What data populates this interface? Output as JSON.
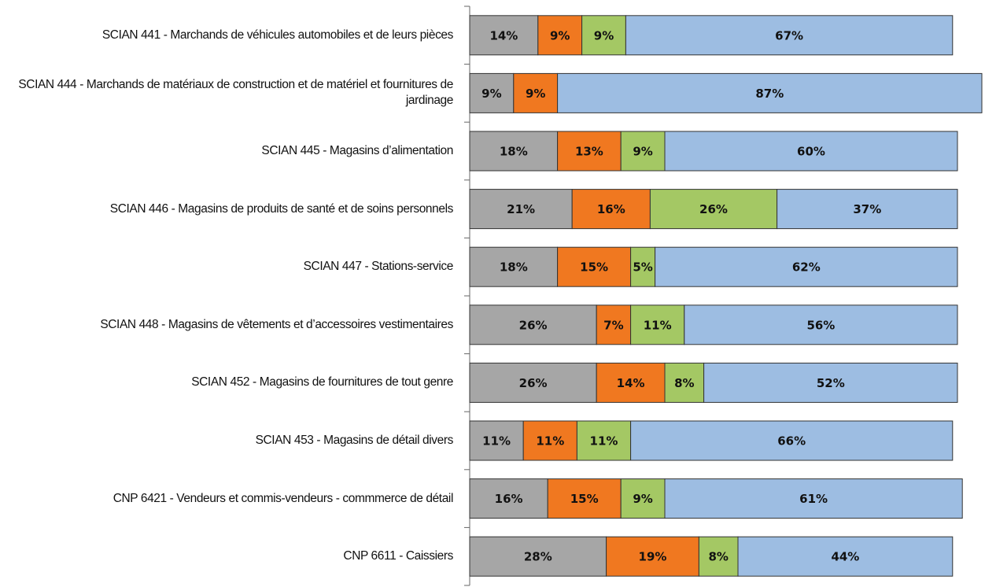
{
  "chart_data": {
    "type": "stacked-bar-horizontal",
    "categories": [
      "SCIAN 441 -  Marchands de véhicules automobiles et de leurs pièces",
      "SCIAN 444 -  Marchands de matériaux de construction et de matériel et fournitures de jardinage",
      "SCIAN 445 -  Magasins d’alimentation",
      "SCIAN 446 -  Magasins de produits de santé et de soins personnels",
      "SCIAN 447 -  Stations-service",
      "SCIAN 448 -  Magasins de vêtements et d’accessoires vestimentaires",
      "SCIAN 452 -  Magasins de fournitures de tout genre",
      "SCIAN 453 -  Magasins de détail divers",
      "CNP 6421 - Vendeurs et commis-vendeurs - commmerce de détail",
      "CNP 6611 - Caissiers"
    ],
    "series": [
      {
        "color": "#a6a6a6",
        "values": [
          14,
          9,
          18,
          21,
          18,
          26,
          26,
          11,
          16,
          28
        ],
        "value_labels": [
          "14%",
          "9%",
          "18%",
          "21%",
          "18%",
          "26%",
          "26%",
          "11%",
          "16%",
          "28%"
        ]
      },
      {
        "color": "#f07820",
        "values": [
          9,
          9,
          13,
          16,
          15,
          7,
          14,
          11,
          15,
          19
        ],
        "value_labels": [
          "9%",
          "9%",
          "13%",
          "16%",
          "15%",
          "7%",
          "14%",
          "11%",
          "15%",
          "19%"
        ]
      },
      {
        "color": "#a4c864",
        "values": [
          9,
          null,
          9,
          26,
          5,
          11,
          8,
          11,
          9,
          8
        ],
        "value_labels": [
          "9%",
          null,
          "9%",
          "26%",
          "5%",
          "11%",
          "8%",
          "11%",
          "9%",
          "8%"
        ]
      },
      {
        "color": "#9dbde2",
        "values": [
          67,
          87,
          60,
          37,
          62,
          56,
          52,
          66,
          61,
          44
        ],
        "value_labels": [
          "67%",
          "87%",
          "60%",
          "37%",
          "62%",
          "56%",
          "52%",
          "66%",
          "61%",
          "44%"
        ]
      }
    ],
    "xlim": [
      0,
      100
    ]
  }
}
